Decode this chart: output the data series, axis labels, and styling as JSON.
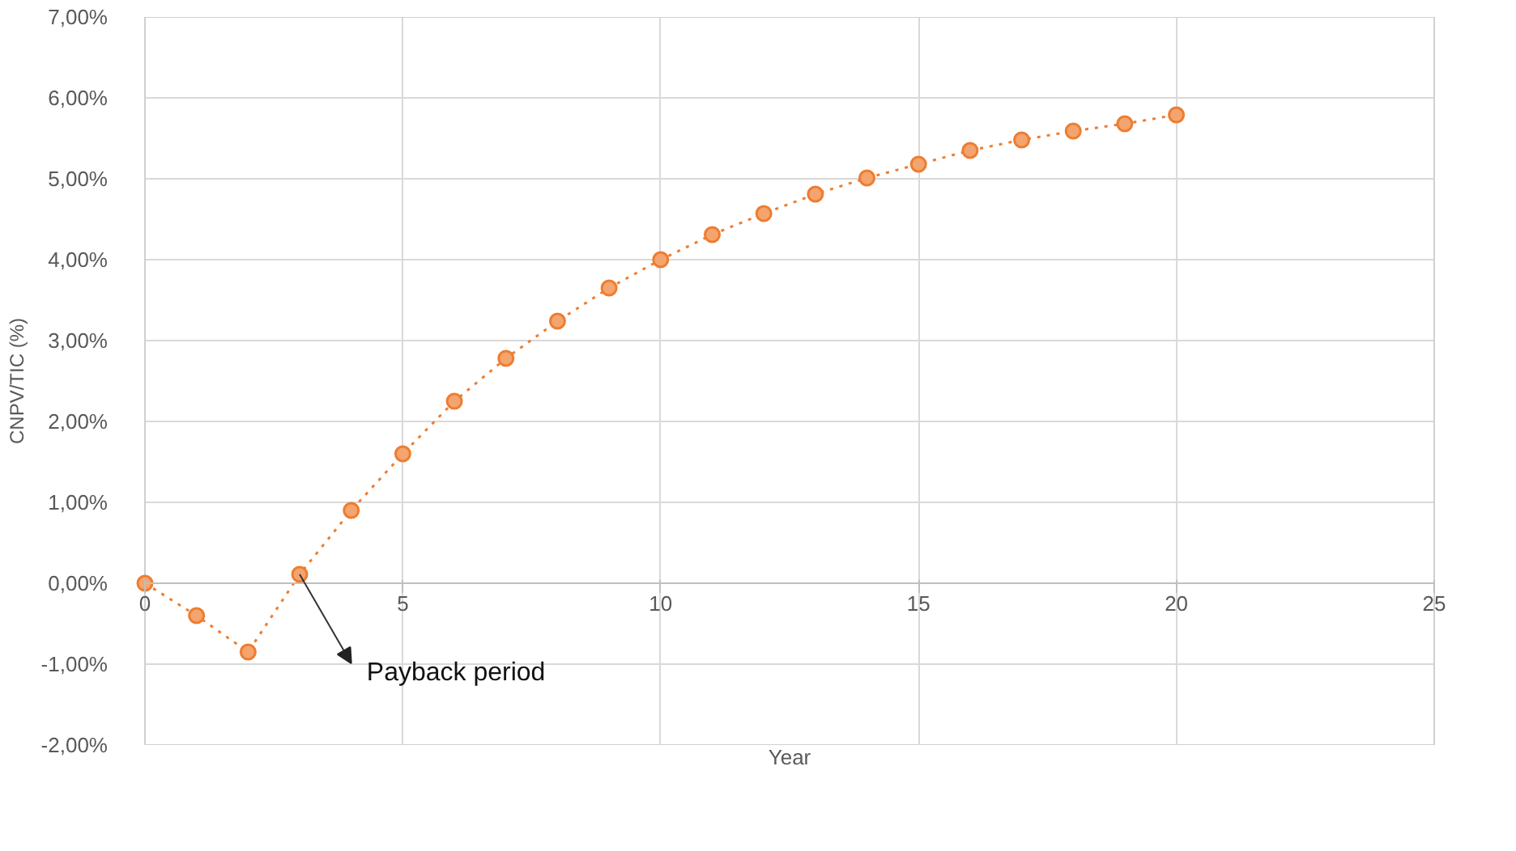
{
  "chart_data": {
    "type": "line",
    "xlabel": "Year",
    "ylabel": "CNPV/TIC (%)",
    "x": [
      0,
      1,
      2,
      3,
      4,
      5,
      6,
      7,
      8,
      9,
      10,
      11,
      12,
      13,
      14,
      15,
      16,
      17,
      18,
      19,
      20
    ],
    "series": [
      {
        "color": "#ed7d31",
        "values": [
          0.0,
          -0.4,
          -0.85,
          0.11,
          0.9,
          1.6,
          2.25,
          2.78,
          3.24,
          3.65,
          4.0,
          4.31,
          4.57,
          4.81,
          5.01,
          5.18,
          5.35,
          5.48,
          5.59,
          5.68,
          5.79
        ]
      }
    ],
    "xlim": [
      0,
      25
    ],
    "xticks": [
      0,
      5,
      10,
      15,
      20,
      25
    ],
    "ylim": [
      -2,
      7
    ],
    "yticks": [
      {
        "value": -2,
        "label": "-2,00%"
      },
      {
        "value": -1,
        "label": "-1,00%"
      },
      {
        "value": 0,
        "label": "0,00%"
      },
      {
        "value": 1,
        "label": "1,00%"
      },
      {
        "value": 2,
        "label": "2,00%"
      },
      {
        "value": 3,
        "label": "3,00%"
      },
      {
        "value": 4,
        "label": "4,00%"
      },
      {
        "value": 5,
        "label": "5,00%"
      },
      {
        "value": 6,
        "label": "6,00%"
      },
      {
        "value": 7,
        "label": "7,00%"
      }
    ],
    "grid": true,
    "marker": "circle",
    "line_style": "dotted",
    "annotations": [
      {
        "text": "Payback period",
        "x": 3,
        "y": 0.11
      }
    ]
  }
}
